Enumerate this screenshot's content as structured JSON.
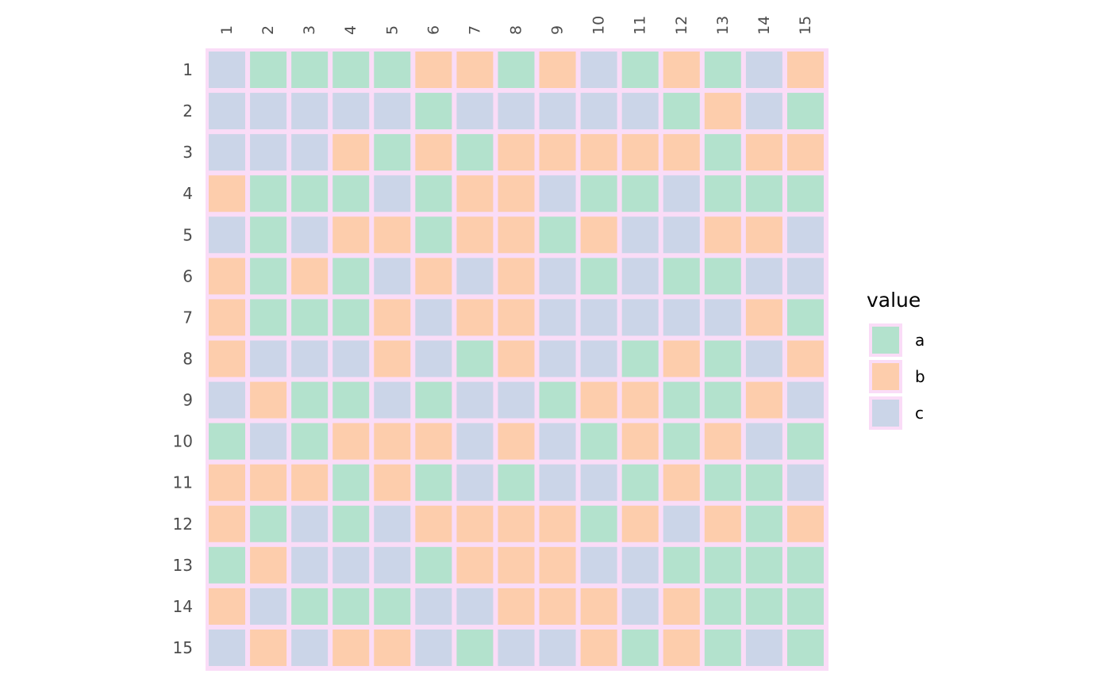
{
  "chart_data": {
    "type": "heatmap",
    "title": "",
    "xlabel": "",
    "ylabel": "",
    "x_labels": [
      "1",
      "2",
      "3",
      "4",
      "5",
      "6",
      "7",
      "8",
      "9",
      "10",
      "11",
      "12",
      "13",
      "14",
      "15"
    ],
    "y_labels": [
      "1",
      "2",
      "3",
      "4",
      "5",
      "6",
      "7",
      "8",
      "9",
      "10",
      "11",
      "12",
      "13",
      "14",
      "15"
    ],
    "values": [
      [
        "c",
        "a",
        "a",
        "a",
        "a",
        "b",
        "b",
        "a",
        "b",
        "c",
        "a",
        "b",
        "a",
        "c",
        "b"
      ],
      [
        "c",
        "c",
        "c",
        "c",
        "c",
        "a",
        "c",
        "c",
        "c",
        "c",
        "c",
        "a",
        "b",
        "c",
        "a"
      ],
      [
        "c",
        "c",
        "c",
        "b",
        "a",
        "b",
        "a",
        "b",
        "b",
        "b",
        "b",
        "b",
        "a",
        "b",
        "b"
      ],
      [
        "b",
        "a",
        "a",
        "a",
        "c",
        "a",
        "b",
        "b",
        "c",
        "a",
        "a",
        "c",
        "a",
        "a",
        "a"
      ],
      [
        "c",
        "a",
        "c",
        "b",
        "b",
        "a",
        "b",
        "b",
        "a",
        "b",
        "c",
        "c",
        "b",
        "b",
        "c"
      ],
      [
        "b",
        "a",
        "b",
        "a",
        "c",
        "b",
        "c",
        "b",
        "c",
        "a",
        "c",
        "a",
        "a",
        "c",
        "c"
      ],
      [
        "b",
        "a",
        "a",
        "a",
        "b",
        "c",
        "b",
        "b",
        "c",
        "c",
        "c",
        "c",
        "c",
        "b",
        "a"
      ],
      [
        "b",
        "c",
        "c",
        "c",
        "b",
        "c",
        "a",
        "b",
        "c",
        "c",
        "a",
        "b",
        "a",
        "c",
        "b"
      ],
      [
        "c",
        "b",
        "a",
        "a",
        "c",
        "a",
        "c",
        "c",
        "a",
        "b",
        "b",
        "a",
        "a",
        "b",
        "c"
      ],
      [
        "a",
        "c",
        "a",
        "b",
        "b",
        "b",
        "c",
        "b",
        "c",
        "a",
        "b",
        "a",
        "b",
        "c",
        "a"
      ],
      [
        "b",
        "b",
        "b",
        "a",
        "b",
        "a",
        "c",
        "a",
        "c",
        "c",
        "a",
        "b",
        "a",
        "a",
        "c"
      ],
      [
        "b",
        "a",
        "c",
        "a",
        "c",
        "b",
        "b",
        "b",
        "b",
        "a",
        "b",
        "c",
        "b",
        "a",
        "b"
      ],
      [
        "a",
        "b",
        "c",
        "c",
        "c",
        "a",
        "b",
        "b",
        "b",
        "c",
        "c",
        "a",
        "a",
        "a",
        "a"
      ],
      [
        "b",
        "c",
        "a",
        "a",
        "a",
        "c",
        "c",
        "b",
        "b",
        "b",
        "c",
        "b",
        "a",
        "a",
        "a"
      ],
      [
        "c",
        "b",
        "c",
        "b",
        "b",
        "c",
        "a",
        "c",
        "c",
        "b",
        "a",
        "b",
        "a",
        "c",
        "a"
      ]
    ],
    "legend": {
      "title": "value",
      "position": "right",
      "entries": [
        {
          "label": "a",
          "color": "#b3e2cd"
        },
        {
          "label": "b",
          "color": "#fdcdac"
        },
        {
          "label": "c",
          "color": "#cbd5e8"
        }
      ]
    },
    "colors": {
      "border": "#fadcf7",
      "panel": "#ffffff",
      "axis_text": "#4d4d4d",
      "legend_text": "#000000"
    },
    "grid": false
  }
}
